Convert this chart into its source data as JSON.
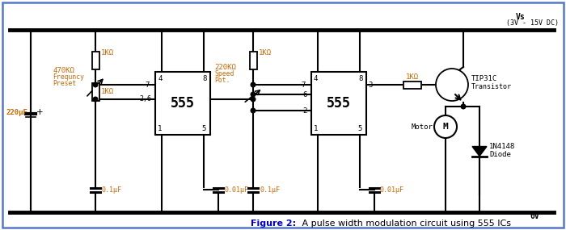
{
  "bg_color": "#ffffff",
  "border_color": "#5577cc",
  "lc": "#000000",
  "oc": "#cc6600",
  "fig_width": 7.0,
  "fig_height": 2.85,
  "caption_bold": "Figure 2:",
  "caption_rest": " A pulse width modulation circuit using 555 ICs",
  "vs_label": "Vs",
  "vs_sub": "(3V - 15V DC)",
  "ov_label": "0V",
  "ic1_label": "555",
  "ic2_label": "555",
  "res_1k_1": "1KΩ",
  "res_470k": "470KΩ",
  "freq_preset_1": "Frequncy",
  "freq_preset_2": "Preset",
  "res_1k_2": "1KΩ",
  "res_1k_3": "1KΩ",
  "res_220k": "220KΩ",
  "speed_pot_1": "Speed",
  "speed_pot_2": "Pot.",
  "res_1k_out": "1KΩ",
  "cap_220u": "220μF",
  "cap_01a": "0.1μF",
  "cap_001a": "0.01μF",
  "cap_01b": "0.1μF",
  "cap_001b": "0.01μF",
  "transistor_label1": "TIP31C",
  "transistor_label2": "Transistor",
  "motor_label": "Motor",
  "diode_label1": "1N4148",
  "diode_label2": "Diode",
  "pin4_1": "4",
  "pin8_1": "8",
  "pin7_1": "7",
  "pin26_1": "2,6",
  "pin1_1": "1",
  "pin5_1": "5",
  "pin4_2": "4",
  "pin8_2": "8",
  "pin7_2": "7",
  "pin6_2": "6",
  "pin2_2": "2",
  "pin1_2": "1",
  "pin5_2": "5",
  "pin3_2": "3"
}
